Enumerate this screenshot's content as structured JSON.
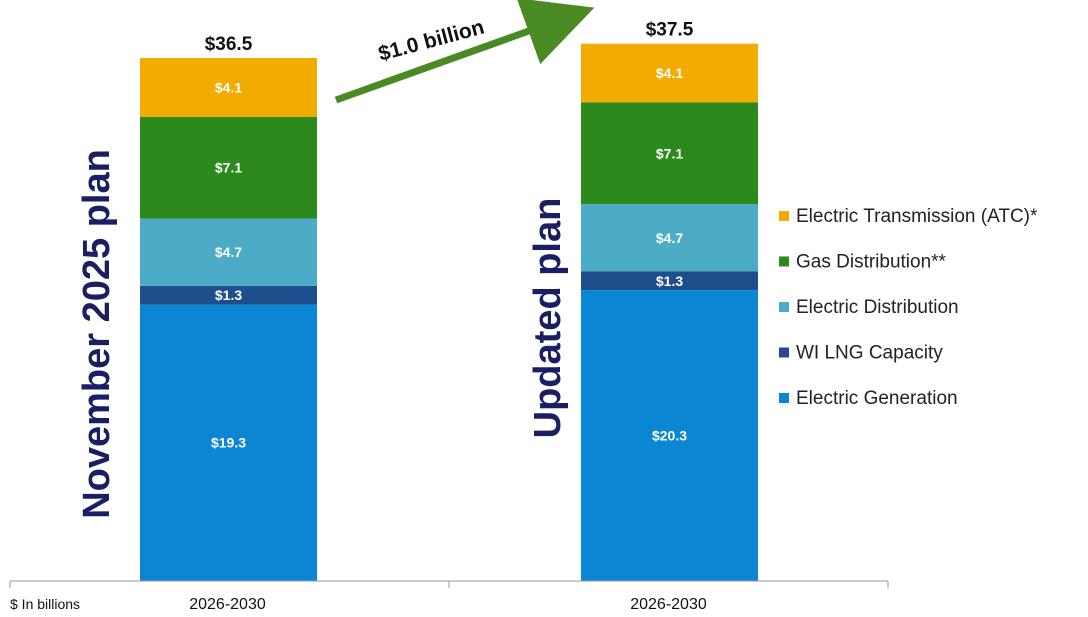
{
  "colors": {
    "electric_transmission": "#f2ab00",
    "gas_distribution": "#2c8a1d",
    "electric_distribution": "#4cacc6",
    "wi_lng_capacity": "#1f4e8c",
    "electric_generation": "#0b86d3",
    "arrow": "#4a8a22",
    "plan_label": "#1a1f63"
  },
  "plan_labels": [
    "November 2025 plan",
    "Updated plan"
  ],
  "arrow_label": "$1.0 billion",
  "unit_label": "$ In billions",
  "chart_data": {
    "type": "bar",
    "stacked": true,
    "categories": [
      "2026-2030",
      "2026-2030"
    ],
    "series": [
      {
        "name": "Electric Generation",
        "color_key": "electric_generation",
        "values": [
          19.3,
          20.3
        ],
        "labels": [
          "$19.3",
          "$20.3"
        ]
      },
      {
        "name": "WI LNG Capacity",
        "color_key": "wi_lng_capacity",
        "values": [
          1.3,
          1.3
        ],
        "labels": [
          "$1.3",
          "$1.3"
        ]
      },
      {
        "name": "Electric Distribution",
        "color_key": "electric_distribution",
        "values": [
          4.7,
          4.7
        ],
        "labels": [
          "$4.7",
          "$4.7"
        ]
      },
      {
        "name": "Gas Distribution**",
        "color_key": "gas_distribution",
        "values": [
          7.1,
          7.1
        ],
        "labels": [
          "$7.1",
          "$7.1"
        ]
      },
      {
        "name": "Electric Transmission (ATC)*",
        "color_key": "electric_transmission",
        "values": [
          4.1,
          4.1
        ],
        "labels": [
          "$4.1",
          "$4.1"
        ]
      }
    ],
    "totals": [
      36.5,
      37.5
    ],
    "total_labels": [
      "$36.5",
      "$37.5"
    ],
    "legend_order": [
      4,
      3,
      2,
      1,
      0
    ],
    "legend_position": "right",
    "ylim": [
      0,
      36.5
    ],
    "grid": false
  }
}
